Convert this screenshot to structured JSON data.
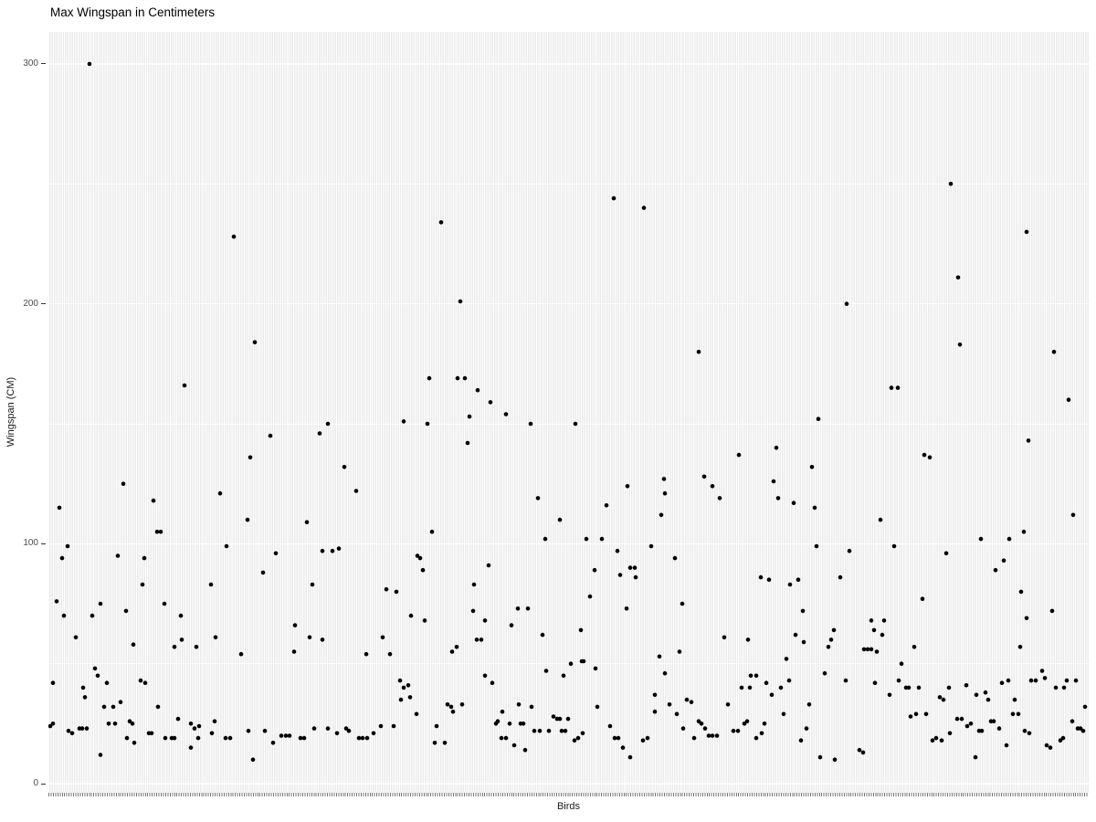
{
  "title": "Max Wingspan in Centimeters",
  "axes": {
    "x_label": "Birds",
    "y_label": "Wingspan (CM)",
    "y_tick_values": [
      300,
      200,
      100,
      0
    ]
  },
  "colors": {
    "panel_background": "#EBEBEB",
    "gridline": "#FFFFFF",
    "point": "#000000",
    "tick_text": "#4d4d4d",
    "axis_title_text": "#1a1a1a",
    "title_text": "#000000"
  },
  "chart_data": {
    "type": "scatter",
    "title": "Max Wingspan in Centimeters",
    "xlabel": "Birds",
    "ylabel": "Wingspan (CM)",
    "x_axis_style": "categorical, one gridline per bird, no category labels shown",
    "ylim": [
      -4,
      314
    ],
    "y_major_gridlines": [
      0,
      100,
      200,
      300
    ],
    "y_minor_gridlines": [
      50,
      150,
      250
    ],
    "grid": "on",
    "legend": "none",
    "point_radius_px": 2.3,
    "points_format": "[x_position_px_53_to_1192, wingspan_cm]",
    "points": [
      [
        98,
        300
      ],
      [
        256,
        228
      ],
      [
        279,
        184
      ],
      [
        202,
        166
      ],
      [
        483,
        234
      ],
      [
        672,
        244
      ],
      [
        705,
        240
      ],
      [
        504,
        201
      ],
      [
        765,
        180
      ],
      [
        470,
        169
      ],
      [
        501,
        169
      ],
      [
        509,
        169
      ],
      [
        523,
        164
      ],
      [
        537,
        159
      ],
      [
        1041,
        250
      ],
      [
        1124,
        230
      ],
      [
        1049,
        211
      ],
      [
        927,
        200
      ],
      [
        1051,
        183
      ],
      [
        1154,
        180
      ],
      [
        976,
        165
      ],
      [
        983,
        165
      ],
      [
        1170,
        160
      ],
      [
        359,
        150
      ],
      [
        350,
        146
      ],
      [
        296,
        145
      ],
      [
        274,
        136
      ],
      [
        377,
        132
      ],
      [
        135,
        125
      ],
      [
        390,
        122
      ],
      [
        241,
        121
      ],
      [
        168,
        118
      ],
      [
        65,
        115
      ],
      [
        271,
        110
      ],
      [
        336,
        109
      ],
      [
        172,
        105
      ],
      [
        176,
        105
      ],
      [
        248,
        99
      ],
      [
        74,
        99
      ],
      [
        353,
        97
      ],
      [
        364,
        97
      ],
      [
        371,
        98
      ],
      [
        68,
        94
      ],
      [
        129,
        95
      ],
      [
        158,
        94
      ],
      [
        302,
        96
      ],
      [
        288,
        88
      ],
      [
        342,
        83
      ],
      [
        231,
        83
      ],
      [
        156,
        83
      ],
      [
        62,
        76
      ],
      [
        110,
        75
      ],
      [
        101,
        70
      ],
      [
        70,
        70
      ],
      [
        138,
        72
      ],
      [
        180,
        75
      ],
      [
        198,
        70
      ],
      [
        83,
        61
      ],
      [
        146,
        58
      ],
      [
        191,
        57
      ],
      [
        199,
        60
      ],
      [
        215,
        57
      ],
      [
        236,
        61
      ],
      [
        264,
        54
      ],
      [
        323,
        66
      ],
      [
        322,
        55
      ],
      [
        339,
        61
      ],
      [
        353,
        60
      ],
      [
        401,
        54
      ],
      [
        419,
        61
      ],
      [
        427,
        54
      ],
      [
        423,
        81
      ],
      [
        434,
        80
      ],
      [
        104,
        48
      ],
      [
        107,
        45
      ],
      [
        58,
        42
      ],
      [
        117,
        42
      ],
      [
        91,
        40
      ],
      [
        93,
        36
      ],
      [
        154,
        43
      ],
      [
        159,
        42
      ],
      [
        132,
        34
      ],
      [
        124,
        32
      ],
      [
        114,
        32
      ],
      [
        173,
        32
      ],
      [
        119,
        25
      ],
      [
        126,
        25
      ],
      [
        142,
        26
      ],
      [
        145,
        25
      ],
      [
        139,
        19
      ],
      [
        147,
        17
      ],
      [
        110,
        12
      ],
      [
        55,
        24
      ],
      [
        58,
        25
      ],
      [
        75,
        22
      ],
      [
        79,
        21
      ],
      [
        87,
        23
      ],
      [
        90,
        23
      ],
      [
        95,
        23
      ],
      [
        163,
        21
      ],
      [
        166,
        21
      ],
      [
        181,
        19
      ],
      [
        188,
        19
      ],
      [
        191,
        19
      ],
      [
        195,
        27
      ],
      [
        209,
        25
      ],
      [
        213,
        23
      ],
      [
        218,
        24
      ],
      [
        209,
        15
      ],
      [
        217,
        19
      ],
      [
        232,
        21
      ],
      [
        235,
        26
      ],
      [
        247,
        19
      ],
      [
        252,
        19
      ],
      [
        277,
        10
      ],
      [
        272,
        22
      ],
      [
        290,
        22
      ],
      [
        299,
        17
      ],
      [
        308,
        20
      ],
      [
        313,
        20
      ],
      [
        317,
        20
      ],
      [
        329,
        19
      ],
      [
        333,
        19
      ],
      [
        344,
        23
      ],
      [
        359,
        23
      ],
      [
        369,
        21
      ],
      [
        379,
        23
      ],
      [
        382,
        22
      ],
      [
        393,
        19
      ],
      [
        397,
        19
      ],
      [
        402,
        19
      ],
      [
        409,
        21
      ],
      [
        417,
        24
      ],
      [
        431,
        24
      ],
      [
        554,
        154
      ],
      [
        442,
        151
      ],
      [
        468,
        150
      ],
      [
        514,
        153
      ],
      [
        581,
        150
      ],
      [
        630,
        150
      ],
      [
        512,
        142
      ],
      [
        809,
        137
      ],
      [
        727,
        127
      ],
      [
        771,
        128
      ],
      [
        687,
        124
      ],
      [
        780,
        124
      ],
      [
        728,
        121
      ],
      [
        788,
        119
      ],
      [
        589,
        119
      ],
      [
        664,
        116
      ],
      [
        613,
        110
      ],
      [
        724,
        112
      ],
      [
        473,
        105
      ],
      [
        597,
        102
      ],
      [
        642,
        102
      ],
      [
        659,
        102
      ],
      [
        713,
        99
      ],
      [
        676,
        97
      ],
      [
        457,
        95
      ],
      [
        460,
        94
      ],
      [
        463,
        89
      ],
      [
        535,
        91
      ],
      [
        739,
        94
      ],
      [
        651,
        89
      ],
      [
        690,
        90
      ],
      [
        695,
        90
      ],
      [
        679,
        87
      ],
      [
        696,
        86
      ],
      [
        519,
        83
      ],
      [
        646,
        78
      ],
      [
        747,
        75
      ],
      [
        518,
        72
      ],
      [
        531,
        68
      ],
      [
        567,
        73
      ],
      [
        578,
        73
      ],
      [
        686,
        73
      ],
      [
        450,
        70
      ],
      [
        465,
        68
      ],
      [
        560,
        66
      ],
      [
        594,
        62
      ],
      [
        636,
        64
      ],
      [
        639,
        51
      ],
      [
        527,
        60
      ],
      [
        522,
        60
      ],
      [
        500,
        57
      ],
      [
        495,
        55
      ],
      [
        793,
        61
      ],
      [
        744,
        55
      ],
      [
        722,
        53
      ],
      [
        625,
        50
      ],
      [
        637,
        51
      ],
      [
        652,
        48
      ],
      [
        598,
        47
      ],
      [
        617,
        45
      ],
      [
        531,
        45
      ],
      [
        539,
        42
      ],
      [
        438,
        43
      ],
      [
        447,
        41
      ],
      [
        442,
        40
      ],
      [
        449,
        36
      ],
      [
        439,
        35
      ],
      [
        490,
        33
      ],
      [
        494,
        32
      ],
      [
        506,
        33
      ],
      [
        496,
        30
      ],
      [
        456,
        29
      ],
      [
        478,
        24
      ],
      [
        487,
        17
      ],
      [
        476,
        17
      ],
      [
        568,
        33
      ],
      [
        582,
        32
      ],
      [
        550,
        30
      ],
      [
        545,
        26
      ],
      [
        543,
        25
      ],
      [
        558,
        25
      ],
      [
        570,
        25
      ],
      [
        573,
        25
      ],
      [
        585,
        22
      ],
      [
        591,
        22
      ],
      [
        601,
        22
      ],
      [
        606,
        28
      ],
      [
        610,
        27
      ],
      [
        613,
        27
      ],
      [
        615,
        22
      ],
      [
        619,
        22
      ],
      [
        622,
        27
      ],
      [
        629,
        18
      ],
      [
        633,
        19
      ],
      [
        638,
        21
      ],
      [
        549,
        19
      ],
      [
        554,
        19
      ],
      [
        563,
        16
      ],
      [
        575,
        14
      ],
      [
        654,
        32
      ],
      [
        668,
        24
      ],
      [
        673,
        19
      ],
      [
        677,
        19
      ],
      [
        682,
        15
      ],
      [
        690,
        11
      ],
      [
        704,
        18
      ],
      [
        709,
        19
      ],
      [
        717,
        37
      ],
      [
        733,
        33
      ],
      [
        717,
        30
      ],
      [
        741,
        29
      ],
      [
        752,
        35
      ],
      [
        757,
        34
      ],
      [
        748,
        23
      ],
      [
        760,
        19
      ],
      [
        765,
        26
      ],
      [
        768,
        25
      ],
      [
        772,
        23
      ],
      [
        776,
        20
      ],
      [
        780,
        20
      ],
      [
        785,
        20
      ],
      [
        803,
        22
      ],
      [
        808,
        22
      ],
      [
        812,
        40
      ],
      [
        797,
        33
      ],
      [
        728,
        46
      ],
      [
        896,
        152
      ],
      [
        1126,
        143
      ],
      [
        850,
        140
      ],
      [
        1012,
        137
      ],
      [
        1018,
        136
      ],
      [
        889,
        132
      ],
      [
        847,
        126
      ],
      [
        852,
        119
      ],
      [
        869,
        117
      ],
      [
        892,
        115
      ],
      [
        1175,
        112
      ],
      [
        964,
        110
      ],
      [
        1121,
        105
      ],
      [
        1074,
        102
      ],
      [
        1105,
        102
      ],
      [
        894,
        99
      ],
      [
        979,
        99
      ],
      [
        930,
        97
      ],
      [
        1036,
        96
      ],
      [
        1099,
        93
      ],
      [
        1090,
        89
      ],
      [
        833,
        86
      ],
      [
        842,
        85
      ],
      [
        865,
        83
      ],
      [
        874,
        85
      ],
      [
        920,
        86
      ],
      [
        1010,
        77
      ],
      [
        1118,
        80
      ],
      [
        879,
        72
      ],
      [
        1152,
        72
      ],
      [
        954,
        68
      ],
      [
        968,
        68
      ],
      [
        957,
        64
      ],
      [
        966,
        62
      ],
      [
        913,
        64
      ],
      [
        910,
        60
      ],
      [
        907,
        57
      ],
      [
        871,
        62
      ],
      [
        819,
        60
      ],
      [
        880,
        59
      ],
      [
        861,
        52
      ],
      [
        946,
        56
      ],
      [
        950,
        56
      ],
      [
        954,
        56
      ],
      [
        960,
        55
      ],
      [
        1001,
        57
      ],
      [
        1117,
        57
      ],
      [
        987,
        50
      ],
      [
        903,
        46
      ],
      [
        822,
        45
      ],
      [
        828,
        45
      ],
      [
        839,
        42
      ],
      [
        855,
        40
      ],
      [
        821,
        40
      ],
      [
        845,
        37
      ],
      [
        858,
        29
      ],
      [
        864,
        43
      ],
      [
        926,
        43
      ],
      [
        958,
        42
      ],
      [
        974,
        37
      ],
      [
        984,
        43
      ],
      [
        992,
        40
      ],
      [
        995,
        40
      ],
      [
        1006,
        40
      ],
      [
        1029,
        36
      ],
      [
        1033,
        35
      ],
      [
        1039,
        40
      ],
      [
        1058,
        41
      ],
      [
        1069,
        37
      ],
      [
        1079,
        38
      ],
      [
        1082,
        35
      ],
      [
        1097,
        42
      ],
      [
        1104,
        43
      ],
      [
        1111,
        35
      ],
      [
        1115,
        29
      ],
      [
        1129,
        43
      ],
      [
        1134,
        43
      ],
      [
        1141,
        47
      ],
      [
        1144,
        44
      ],
      [
        1156,
        40
      ],
      [
        1165,
        40
      ],
      [
        1168,
        43
      ],
      [
        1178,
        43
      ],
      [
        1174,
        26
      ],
      [
        1180,
        23
      ],
      [
        1183,
        23
      ],
      [
        1186,
        22
      ],
      [
        1188,
        32
      ],
      [
        997,
        28
      ],
      [
        1003,
        29
      ],
      [
        1014,
        29
      ],
      [
        1021,
        18
      ],
      [
        1025,
        19
      ],
      [
        1031,
        18
      ],
      [
        1040,
        21
      ],
      [
        1048,
        27
      ],
      [
        1053,
        27
      ],
      [
        1059,
        24
      ],
      [
        1063,
        25
      ],
      [
        1072,
        22
      ],
      [
        1075,
        22
      ],
      [
        1085,
        26
      ],
      [
        1088,
        26
      ],
      [
        1094,
        23
      ],
      [
        1102,
        16
      ],
      [
        1109,
        29
      ],
      [
        1122,
        22
      ],
      [
        1127,
        21
      ],
      [
        941,
        14
      ],
      [
        945,
        13
      ],
      [
        898,
        11
      ],
      [
        914,
        10
      ],
      [
        877,
        18
      ],
      [
        883,
        23
      ],
      [
        834,
        21
      ],
      [
        837,
        25
      ],
      [
        815,
        25
      ],
      [
        818,
        26
      ],
      [
        828,
        19
      ],
      [
        1068,
        11
      ],
      [
        1161,
        18
      ],
      [
        1164,
        19
      ],
      [
        1146,
        16
      ],
      [
        1150,
        15
      ],
      [
        1124,
        69
      ],
      [
        886,
        33
      ]
    ]
  }
}
